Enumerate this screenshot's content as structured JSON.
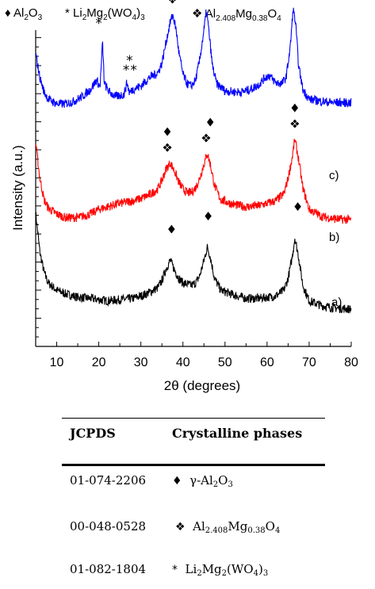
{
  "legend": {
    "al2o3": {
      "symbol": "♦",
      "parts": [
        "Al",
        "2",
        "O",
        "3"
      ]
    },
    "li2mg2wo4": {
      "symbol": "*",
      "parts": [
        "Li",
        "2",
        "Mg",
        "2",
        "(WO",
        "4",
        ")",
        "3"
      ]
    },
    "al2408mg038o4": {
      "symbol": "❖",
      "parts": [
        "Al",
        "2.408",
        "Mg",
        "0.38",
        "O",
        "4"
      ]
    }
  },
  "chart_data": {
    "type": "line",
    "xlabel": "2θ (degrees)",
    "ylabel": "Intensity (a.u.)",
    "xlim": [
      5,
      80
    ],
    "x_ticks": [
      10,
      20,
      30,
      40,
      50,
      60,
      70,
      80
    ],
    "y_tick_labels": "none",
    "series": [
      {
        "name": "a)",
        "color": "#000000",
        "points": [
          [
            5,
            0.95
          ],
          [
            6,
            0.62
          ],
          [
            7,
            0.45
          ],
          [
            8,
            0.36
          ],
          [
            10,
            0.3
          ],
          [
            12,
            0.27
          ],
          [
            15,
            0.24
          ],
          [
            18,
            0.23
          ],
          [
            20,
            0.22
          ],
          [
            22,
            0.21
          ],
          [
            25,
            0.22
          ],
          [
            28,
            0.23
          ],
          [
            30,
            0.25
          ],
          [
            32,
            0.28
          ],
          [
            34,
            0.32
          ],
          [
            35,
            0.38
          ],
          [
            36,
            0.48
          ],
          [
            37,
            0.55
          ],
          [
            38,
            0.47
          ],
          [
            39,
            0.4
          ],
          [
            40,
            0.36
          ],
          [
            41,
            0.35
          ],
          [
            42,
            0.34
          ],
          [
            43,
            0.36
          ],
          [
            44,
            0.42
          ],
          [
            45,
            0.55
          ],
          [
            45.8,
            0.66
          ],
          [
            46.5,
            0.58
          ],
          [
            47.5,
            0.4
          ],
          [
            49,
            0.3
          ],
          [
            52,
            0.26
          ],
          [
            55,
            0.23
          ],
          [
            58,
            0.23
          ],
          [
            60,
            0.24
          ],
          [
            62,
            0.25
          ],
          [
            64,
            0.3
          ],
          [
            65,
            0.4
          ],
          [
            66,
            0.58
          ],
          [
            66.6,
            0.74
          ],
          [
            67.4,
            0.6
          ],
          [
            68.5,
            0.34
          ],
          [
            70,
            0.21
          ],
          [
            73,
            0.17
          ],
          [
            76,
            0.15
          ],
          [
            80,
            0.14
          ]
        ],
        "markers": [
          {
            "x": 37.3,
            "symbol": "♦"
          },
          {
            "x": 46,
            "symbol": "♦"
          },
          {
            "x": 67.3,
            "symbol": "♦"
          }
        ]
      },
      {
        "name": "b)",
        "color": "#ff0000",
        "points": [
          [
            5,
            1.0
          ],
          [
            6,
            0.7
          ],
          [
            7,
            0.52
          ],
          [
            8,
            0.45
          ],
          [
            10,
            0.4
          ],
          [
            12,
            0.37
          ],
          [
            15,
            0.37
          ],
          [
            18,
            0.4
          ],
          [
            20,
            0.44
          ],
          [
            22,
            0.46
          ],
          [
            25,
            0.49
          ],
          [
            28,
            0.51
          ],
          [
            30,
            0.53
          ],
          [
            32,
            0.56
          ],
          [
            34,
            0.61
          ],
          [
            35,
            0.68
          ],
          [
            36,
            0.78
          ],
          [
            37,
            0.83
          ],
          [
            38,
            0.76
          ],
          [
            39,
            0.67
          ],
          [
            40,
            0.61
          ],
          [
            41,
            0.58
          ],
          [
            42,
            0.58
          ],
          [
            43,
            0.62
          ],
          [
            44,
            0.7
          ],
          [
            45,
            0.82
          ],
          [
            45.8,
            0.91
          ],
          [
            46.5,
            0.82
          ],
          [
            47.5,
            0.64
          ],
          [
            49,
            0.52
          ],
          [
            52,
            0.48
          ],
          [
            55,
            0.46
          ],
          [
            58,
            0.47
          ],
          [
            60,
            0.49
          ],
          [
            62,
            0.51
          ],
          [
            64,
            0.57
          ],
          [
            65,
            0.7
          ],
          [
            66,
            0.88
          ],
          [
            66.6,
            1.03
          ],
          [
            67.4,
            0.88
          ],
          [
            68.5,
            0.62
          ],
          [
            70,
            0.44
          ],
          [
            73,
            0.38
          ],
          [
            76,
            0.36
          ],
          [
            80,
            0.35
          ]
        ],
        "markers": [
          {
            "x": 36.3,
            "symbol": "♦"
          },
          {
            "x": 36.3,
            "symbol": "❖"
          },
          {
            "x": 46.5,
            "symbol": "♦"
          },
          {
            "x": 45.5,
            "symbol": "❖"
          },
          {
            "x": 66.6,
            "symbol": "♦"
          },
          {
            "x": 66.6,
            "symbol": "❖"
          }
        ]
      },
      {
        "name": "c)",
        "color": "#0000ff",
        "points": [
          [
            5,
            1.3
          ],
          [
            6,
            1.1
          ],
          [
            7,
            0.98
          ],
          [
            8,
            0.92
          ],
          [
            10,
            0.88
          ],
          [
            12,
            0.88
          ],
          [
            14,
            0.9
          ],
          [
            16,
            0.94
          ],
          [
            18,
            1.0
          ],
          [
            19.5,
            1.08
          ],
          [
            20.3,
            1.02
          ],
          [
            20.9,
            1.4
          ],
          [
            21.3,
            1.05
          ],
          [
            22.5,
            0.98
          ],
          [
            24,
            0.94
          ],
          [
            26,
            0.96
          ],
          [
            26.7,
            1.06
          ],
          [
            27.3,
            0.97
          ],
          [
            28,
            1.0
          ],
          [
            30,
            1.03
          ],
          [
            32,
            1.1
          ],
          [
            33,
            1.12
          ],
          [
            34,
            1.14
          ],
          [
            35,
            1.22
          ],
          [
            36,
            1.4
          ],
          [
            37,
            1.57
          ],
          [
            37.6,
            1.63
          ],
          [
            38.4,
            1.5
          ],
          [
            39,
            1.32
          ],
          [
            40,
            1.13
          ],
          [
            41,
            1.05
          ],
          [
            42,
            1.03
          ],
          [
            43,
            1.08
          ],
          [
            44,
            1.25
          ],
          [
            45,
            1.5
          ],
          [
            45.6,
            1.67
          ],
          [
            46.2,
            1.48
          ],
          [
            47,
            1.2
          ],
          [
            48,
            1.05
          ],
          [
            50,
            0.99
          ],
          [
            52,
            0.98
          ],
          [
            54,
            0.98
          ],
          [
            56,
            1.0
          ],
          [
            58,
            1.04
          ],
          [
            59.5,
            1.1
          ],
          [
            60.5,
            1.12
          ],
          [
            62,
            1.06
          ],
          [
            63.5,
            1.05
          ],
          [
            64.5,
            1.1
          ],
          [
            65.5,
            1.35
          ],
          [
            66.2,
            1.68
          ],
          [
            66.8,
            1.55
          ],
          [
            67.5,
            1.2
          ],
          [
            68.5,
            1.0
          ],
          [
            70,
            0.92
          ],
          [
            73,
            0.9
          ],
          [
            76,
            0.89
          ],
          [
            80,
            0.89
          ]
        ],
        "markers": [
          {
            "x": 37.5,
            "symbol": "♦"
          },
          {
            "x": 37.5,
            "symbol": "❖"
          },
          {
            "x": 46.8,
            "symbol": "♦"
          },
          {
            "x": 45.5,
            "symbol": "❖"
          },
          {
            "x": 66.2,
            "symbol": "♦"
          },
          {
            "x": 66.2,
            "symbol": "❖"
          },
          {
            "x": 20,
            "symbol": "*"
          },
          {
            "x": 26.5,
            "symbol": "*"
          },
          {
            "x": 27.3,
            "symbol": "*"
          },
          {
            "x": 28.3,
            "symbol": "*"
          }
        ]
      }
    ]
  },
  "phase_table": {
    "headers": [
      "JCPDS",
      "Crystalline phases"
    ],
    "rows": [
      {
        "code": "01-074-2206",
        "symbol": "♦",
        "phase_parts": [
          "γ-Al",
          "2",
          "O",
          "3"
        ]
      },
      {
        "code": "00-048-0528",
        "symbol": "❖",
        "phase_parts": [
          "Al",
          "2.408",
          "Mg",
          "0.38",
          "O",
          "4"
        ]
      },
      {
        "code": "01-082-1804",
        "symbol": "*",
        "phase_parts": [
          "Li",
          "2",
          "Mg",
          "2",
          "(WO",
          "4",
          ")",
          "3"
        ]
      }
    ]
  }
}
